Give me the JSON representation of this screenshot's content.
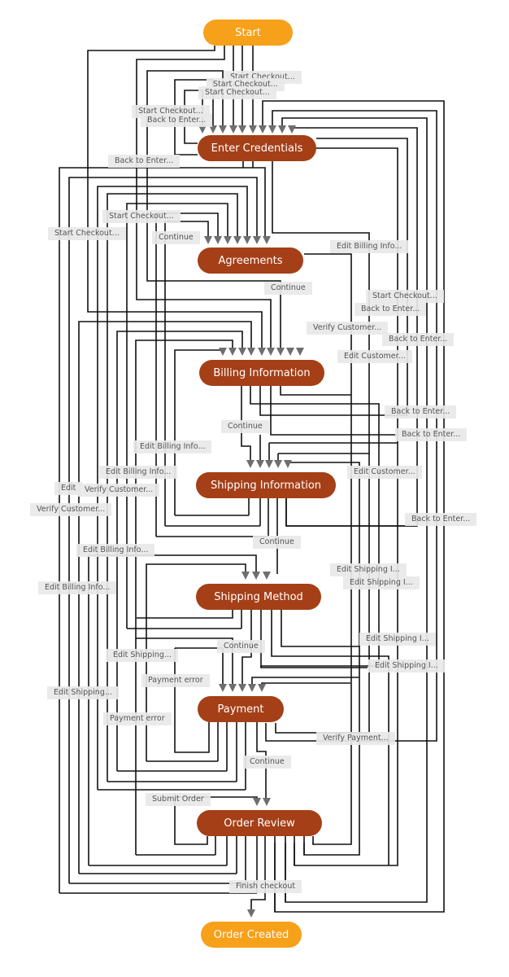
{
  "colors": {
    "terminal": "#f7a01a",
    "step": "#a53f17",
    "edge": "#111111",
    "arrow": "#6e6e6e",
    "label_bg": "#e8e8e8",
    "label_text": "#555555"
  },
  "nodes": [
    {
      "id": "start",
      "label": "Start",
      "kind": "terminal"
    },
    {
      "id": "enter_credentials",
      "label": "Enter Credentials",
      "kind": "step"
    },
    {
      "id": "agreements",
      "label": "Agreements",
      "kind": "step"
    },
    {
      "id": "billing_information",
      "label": "Billing Information",
      "kind": "step"
    },
    {
      "id": "shipping_information",
      "label": "Shipping Information",
      "kind": "step"
    },
    {
      "id": "shipping_method",
      "label": "Shipping Method",
      "kind": "step"
    },
    {
      "id": "payment",
      "label": "Payment",
      "kind": "step"
    },
    {
      "id": "order_review",
      "label": "Order Review",
      "kind": "step"
    },
    {
      "id": "order_created",
      "label": "Order Created",
      "kind": "terminal"
    }
  ],
  "edge_labels": [
    "Start Checkout...",
    "Start Checkout...",
    "Start Checkout...",
    "Start Checkout...",
    "Back to Enter...",
    "Back to Enter...",
    "Start Checkout...",
    "Start Checkout...",
    "Continue",
    "Edit Billing Info...",
    "Continue",
    "Start Checkout...",
    "Back to Enter...",
    "Verify Customer...",
    "Back to Enter...",
    "Edit Customer...",
    "Back to Enter...",
    "Continue",
    "Back to Enter...",
    "Edit Billing Info...",
    "Edit Billing Info...",
    "Edit Customer...",
    "Edit",
    "Verify Customer...",
    "Verify Customer...",
    "Back to Enter...",
    "Continue",
    "Edit Billing Info...",
    "Edit Shipping I...",
    "Edit Shipping I...",
    "Edit Billing Info...",
    "Edit Shipping I...",
    "Continue",
    "Edit Shipping...",
    "Edit Shipping I...",
    "Payment error",
    "Edit Shipping...",
    "Payment error",
    "Verify Payment...",
    "Continue",
    "Submit Order",
    "Finish checkout"
  ]
}
